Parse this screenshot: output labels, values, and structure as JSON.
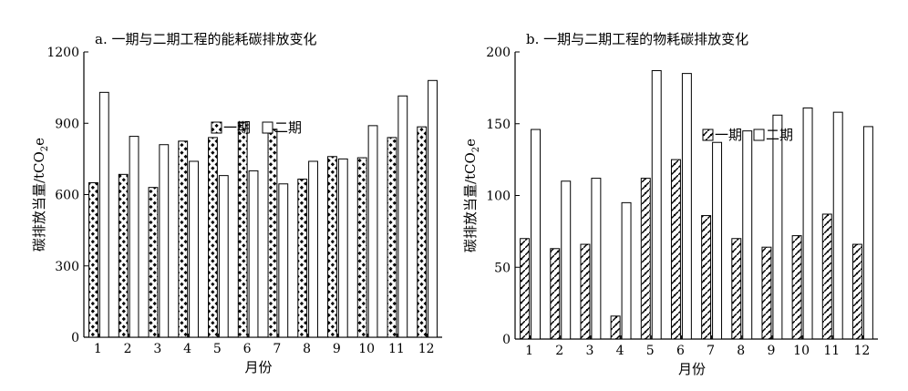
{
  "chart_data": [
    {
      "type": "bar",
      "title": "a. 一期与二期工程的能耗碳排放变化",
      "xlabel": "月份",
      "ylabel": "碳排放当量/tCO",
      "ylabel_sub": "2",
      "ylabel_tail": "e",
      "categories": [
        "1",
        "2",
        "3",
        "4",
        "5",
        "6",
        "7",
        "8",
        "9",
        "10",
        "11",
        "12"
      ],
      "ylim": [
        0,
        1200
      ],
      "yticks": [
        0,
        300,
        600,
        900,
        1200
      ],
      "legend_position": "top-right",
      "series": [
        {
          "name": "一期",
          "values": [
            650,
            685,
            630,
            825,
            840,
            905,
            875,
            665,
            760,
            755,
            840,
            885
          ]
        },
        {
          "name": "二期",
          "values": [
            1030,
            845,
            810,
            740,
            680,
            700,
            645,
            740,
            750,
            890,
            1015,
            1080
          ]
        }
      ]
    },
    {
      "type": "bar",
      "title": "b. 一期与二期工程的物耗碳排放变化",
      "xlabel": "月份",
      "ylabel": "碳排放当量/tCO",
      "ylabel_sub": "2",
      "ylabel_tail": "e",
      "categories": [
        "1",
        "2",
        "3",
        "4",
        "5",
        "6",
        "7",
        "8",
        "9",
        "10",
        "11",
        "12"
      ],
      "ylim": [
        0,
        200
      ],
      "yticks": [
        0,
        50,
        100,
        150,
        200
      ],
      "legend_position": "top-right",
      "series": [
        {
          "name": "一期",
          "values": [
            70,
            63,
            66,
            16,
            112,
            125,
            86,
            70,
            64,
            72,
            87,
            66
          ]
        },
        {
          "name": "二期",
          "values": [
            146,
            110,
            112,
            95,
            187,
            185,
            137,
            145,
            156,
            161,
            158,
            148
          ]
        }
      ]
    }
  ]
}
